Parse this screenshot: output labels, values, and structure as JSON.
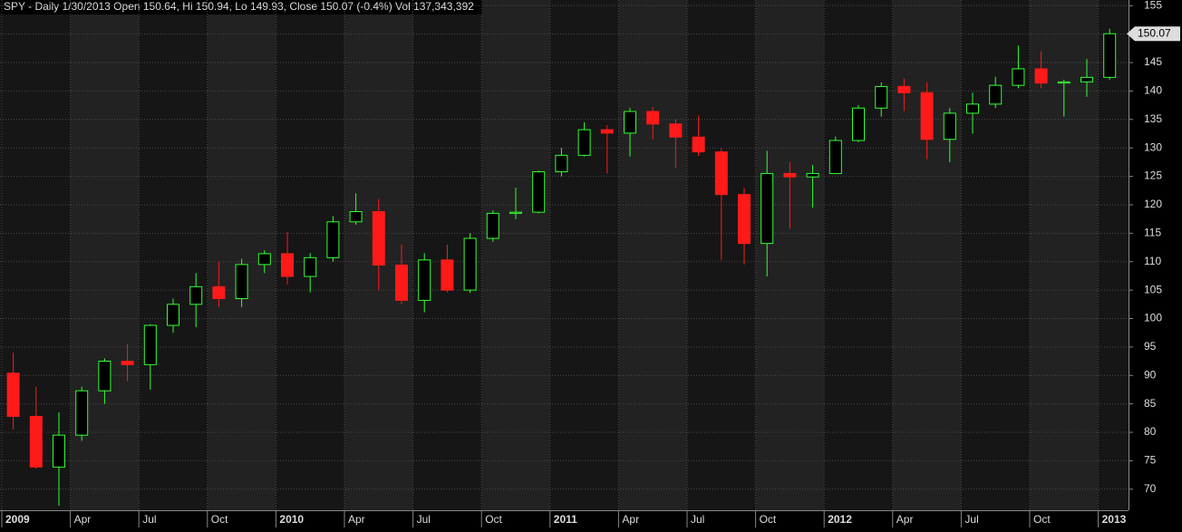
{
  "chart_data": {
    "type": "candlestick",
    "title": "SPY - Daily 1/30/2013 Open 150.64, Hi 150.94, Lo 149.93, Close 150.07 (-0.4%) Vol 137,343,392",
    "x": [
      "2009-01",
      "2009-02",
      "2009-03",
      "2009-04",
      "2009-05",
      "2009-06",
      "2009-07",
      "2009-08",
      "2009-09",
      "2009-10",
      "2009-11",
      "2009-12",
      "2010-01",
      "2010-02",
      "2010-03",
      "2010-04",
      "2010-05",
      "2010-06",
      "2010-07",
      "2010-08",
      "2010-09",
      "2010-10",
      "2010-11",
      "2010-12",
      "2011-01",
      "2011-02",
      "2011-03",
      "2011-04",
      "2011-05",
      "2011-06",
      "2011-07",
      "2011-08",
      "2011-09",
      "2011-10",
      "2011-11",
      "2011-12",
      "2012-01",
      "2012-02",
      "2012-03",
      "2012-04",
      "2012-05",
      "2012-06",
      "2012-07",
      "2012-08",
      "2012-09",
      "2012-10",
      "2012-11",
      "2012-12",
      "2013-01"
    ],
    "open": [
      90.4,
      82.8,
      73.9,
      79.5,
      87.3,
      92.5,
      91.9,
      98.8,
      102.5,
      105.6,
      103.5,
      109.5,
      111.4,
      107.4,
      110.7,
      117,
      118.8,
      109.4,
      103.2,
      110.3,
      105,
      114.1,
      118.5,
      118.7,
      125.8,
      128.7,
      133.2,
      132.6,
      136.4,
      134.2,
      131.9,
      129.3,
      121.8,
      113.2,
      125.5,
      124.9,
      125.5,
      131.3,
      137,
      140.8,
      139.7,
      131.5,
      136.1,
      137.7,
      141,
      143.9,
      141.4,
      141.6,
      142.4
    ],
    "high": [
      94,
      88,
      83.5,
      88,
      93,
      95.5,
      99,
      103.5,
      108,
      110,
      110.5,
      112,
      115.2,
      111.5,
      118,
      122,
      121,
      113,
      111.5,
      113,
      115,
      119,
      123,
      126,
      130,
      134.5,
      134,
      137,
      137.2,
      135,
      135.7,
      130,
      123,
      129.5,
      127.5,
      127,
      132,
      137.5,
      141.5,
      142.2,
      141.5,
      137,
      139.7,
      142.5,
      148,
      147,
      142,
      145.6,
      150.94
    ],
    "low": [
      80.5,
      73.6,
      67.1,
      78.5,
      85,
      89,
      87.5,
      97.5,
      98.5,
      102,
      102,
      108,
      106,
      104.6,
      110,
      116.5,
      105,
      102.5,
      101.1,
      104.6,
      104.5,
      113.5,
      117.5,
      118.5,
      125,
      128.5,
      125.5,
      128.5,
      131.5,
      126.5,
      128.6,
      110.3,
      109.5,
      107.4,
      115.8,
      119.5,
      125.5,
      131,
      135.5,
      136.5,
      128,
      127.5,
      132.5,
      137,
      140.5,
      140.5,
      135.5,
      139,
      142
    ],
    "close": [
      82.8,
      73.9,
      79.5,
      87.3,
      92.5,
      91.9,
      98.8,
      102.5,
      105.6,
      103.5,
      109.5,
      111.4,
      107.4,
      110.7,
      117,
      118.8,
      109.4,
      103.2,
      110.3,
      105,
      114.1,
      118.5,
      118.7,
      125.8,
      128.7,
      133.2,
      132.6,
      136.4,
      134.2,
      131.9,
      129.3,
      121.8,
      113.2,
      125.5,
      124.9,
      125.5,
      131.3,
      137,
      140.8,
      139.7,
      131.5,
      136.1,
      137.7,
      141,
      143.9,
      141.4,
      141.6,
      142.4,
      150.07
    ],
    "up_color": "#33ff33",
    "down_color": "#ff1a1a",
    "ylim": [
      66.3,
      156
    ],
    "yticks": [
      70,
      75,
      80,
      85,
      90,
      95,
      100,
      105,
      110,
      115,
      120,
      125,
      130,
      135,
      140,
      145,
      150,
      155
    ],
    "xticks": [
      {
        "value": "2009-01",
        "label": "2009"
      },
      {
        "value": "2009-04",
        "label": "Apr"
      },
      {
        "value": "2009-07",
        "label": "Jul"
      },
      {
        "value": "2009-10",
        "label": "Oct"
      },
      {
        "value": "2010-01",
        "label": "2010"
      },
      {
        "value": "2010-04",
        "label": "Apr"
      },
      {
        "value": "2010-07",
        "label": "Jul"
      },
      {
        "value": "2010-10",
        "label": "Oct"
      },
      {
        "value": "2011-01",
        "label": "2011"
      },
      {
        "value": "2011-04",
        "label": "Apr"
      },
      {
        "value": "2011-07",
        "label": "Jul"
      },
      {
        "value": "2011-10",
        "label": "Oct"
      },
      {
        "value": "2012-01",
        "label": "2012"
      },
      {
        "value": "2012-04",
        "label": "Apr"
      },
      {
        "value": "2012-07",
        "label": "Jul"
      },
      {
        "value": "2012-10",
        "label": "Oct"
      },
      {
        "value": "2013-01",
        "label": "2013"
      }
    ],
    "grid": true
  }
}
